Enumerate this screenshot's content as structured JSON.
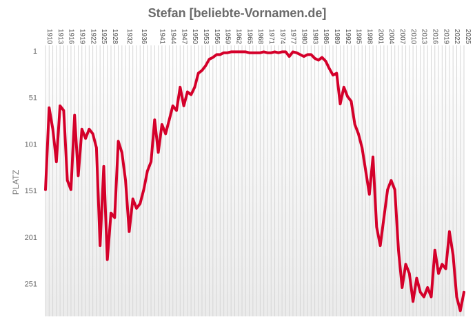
{
  "chart_data": {
    "type": "line",
    "title": "Stefan [beliebte-Vornamen.de]",
    "xlabel": "",
    "ylabel": "PLATZ",
    "y_inverted": true,
    "ylim": [
      1,
      286
    ],
    "y_ticks": [
      1,
      51,
      101,
      151,
      201,
      251
    ],
    "xlim": [
      1910,
      2025
    ],
    "x_ticks": [
      1910,
      1913,
      1916,
      1919,
      1922,
      1925,
      1928,
      1932,
      1936,
      1941,
      1944,
      1947,
      1950,
      1953,
      1956,
      1959,
      1962,
      1965,
      1968,
      1971,
      1974,
      1977,
      1980,
      1983,
      1986,
      1989,
      1992,
      1995,
      1998,
      2001,
      2004,
      2007,
      2010,
      2013,
      2016,
      2019,
      2022,
      2025
    ],
    "grid": "vertical lines per year",
    "background": "vertical gradient, white to light grey",
    "series_color": "#d4002a",
    "series": [
      {
        "x": [
          1910,
          1911,
          1912,
          1913,
          1914,
          1915,
          1916,
          1917,
          1918,
          1919,
          1920,
          1921,
          1922,
          1923,
          1924,
          1925,
          1926,
          1927,
          1928,
          1929,
          1930,
          1931,
          1932,
          1933,
          1934,
          1935,
          1936,
          1937,
          1938,
          1939,
          1940,
          1941,
          1942,
          1943,
          1944,
          1945,
          1946,
          1947,
          1948,
          1949,
          1950,
          1951,
          1952,
          1953,
          1954,
          1955,
          1956,
          1957,
          1958,
          1959,
          1960,
          1961,
          1962,
          1963,
          1964,
          1965,
          1966,
          1967,
          1968,
          1969,
          1970,
          1971,
          1972,
          1973,
          1974,
          1975,
          1976,
          1977,
          1978,
          1979,
          1980,
          1981,
          1982,
          1983,
          1984,
          1985,
          1986,
          1987,
          1988,
          1989,
          1990,
          1991,
          1992,
          1993,
          1994,
          1995,
          1996,
          1997,
          1998,
          1999,
          2000,
          2001,
          2002,
          2003,
          2004,
          2005,
          2006,
          2007,
          2008,
          2009,
          2010,
          2011,
          2012,
          2013,
          2014,
          2015,
          2016,
          2017,
          2018,
          2019,
          2020,
          2021,
          2022,
          2023,
          2024,
          2025
        ],
        "values": [
          150,
          62,
          85,
          120,
          60,
          65,
          140,
          150,
          70,
          135,
          85,
          95,
          85,
          90,
          105,
          210,
          125,
          225,
          175,
          180,
          98,
          110,
          140,
          195,
          160,
          170,
          165,
          150,
          130,
          120,
          75,
          110,
          80,
          90,
          75,
          60,
          65,
          40,
          60,
          45,
          48,
          40,
          25,
          22,
          17,
          10,
          8,
          5,
          5,
          3,
          3,
          2,
          2,
          2,
          2,
          2,
          3,
          3,
          3,
          3,
          2,
          3,
          3,
          2,
          3,
          2,
          2,
          7,
          2,
          3,
          5,
          7,
          5,
          5,
          9,
          11,
          8,
          12,
          20,
          27,
          25,
          58,
          40,
          50,
          55,
          80,
          90,
          105,
          130,
          155,
          115,
          190,
          210,
          180,
          150,
          140,
          150,
          215,
          255,
          230,
          240,
          270,
          245,
          260,
          265,
          255,
          265,
          215,
          240,
          230,
          235,
          195,
          220,
          265,
          280,
          260
        ]
      }
    ]
  }
}
